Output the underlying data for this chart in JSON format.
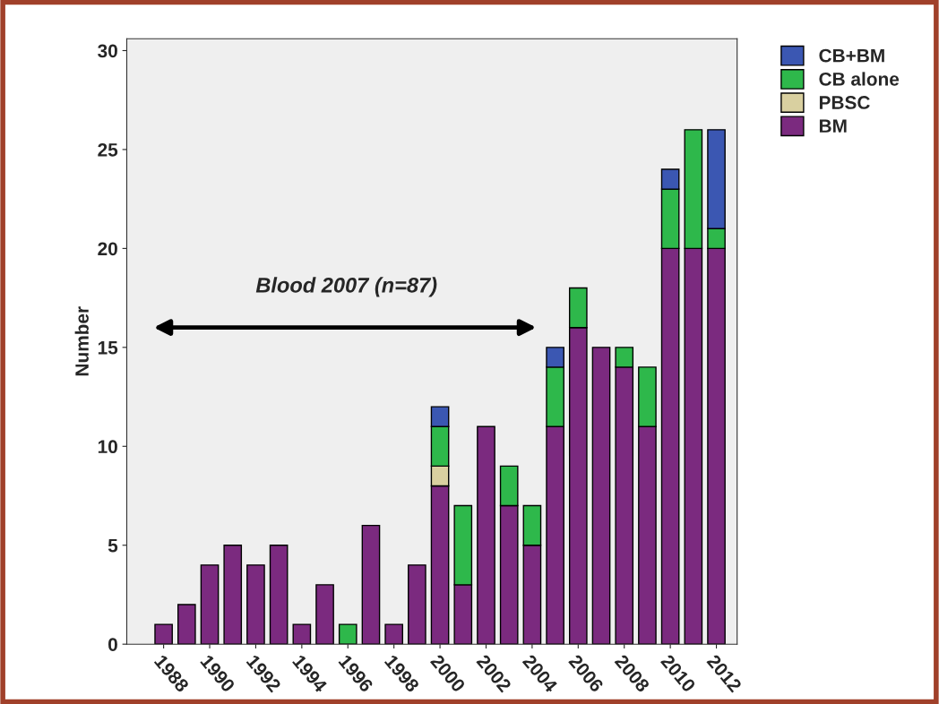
{
  "chart_data": {
    "type": "bar",
    "stacked": true,
    "ylabel": "Number",
    "categories": [
      "1988",
      null,
      "1990",
      null,
      "1992",
      null,
      "1994",
      null,
      "1996",
      null,
      "1998",
      null,
      "2000",
      null,
      "2002",
      null,
      "2004",
      null,
      "2006",
      null,
      "2008",
      null,
      "2010",
      null,
      "2012"
    ],
    "series": [
      {
        "name": "BM",
        "color": "#7b2a7f",
        "values": [
          1,
          2,
          4,
          5,
          4,
          5,
          1,
          3,
          0,
          6,
          1,
          4,
          8,
          3,
          11,
          7,
          5,
          11,
          16,
          15,
          14,
          11,
          20,
          20,
          20
        ]
      },
      {
        "name": "PBSC",
        "color": "#d9d0a0",
        "values": [
          0,
          0,
          0,
          0,
          0,
          0,
          0,
          0,
          0,
          0,
          0,
          0,
          1,
          0,
          0,
          0,
          0,
          0,
          0,
          0,
          0,
          0,
          0,
          0,
          0
        ]
      },
      {
        "name": "CB alone",
        "color": "#2eb84b",
        "values": [
          0,
          0,
          0,
          0,
          0,
          0,
          0,
          0,
          1,
          0,
          0,
          0,
          2,
          4,
          0,
          2,
          2,
          3,
          2,
          0,
          1,
          3,
          3,
          6,
          1
        ]
      },
      {
        "name": "CB+BM",
        "color": "#3b57b2",
        "values": [
          0,
          0,
          0,
          0,
          0,
          0,
          0,
          0,
          0,
          0,
          0,
          0,
          1,
          0,
          0,
          0,
          0,
          1,
          0,
          0,
          0,
          0,
          1,
          0,
          5
        ]
      }
    ],
    "ylim": [
      0,
      30.6
    ],
    "yticks": [
      0,
      5,
      10,
      15,
      20,
      25,
      30
    ],
    "grid": false,
    "legend": "top right",
    "annotations": [
      "Blood 2007 (n=87)"
    ]
  }
}
